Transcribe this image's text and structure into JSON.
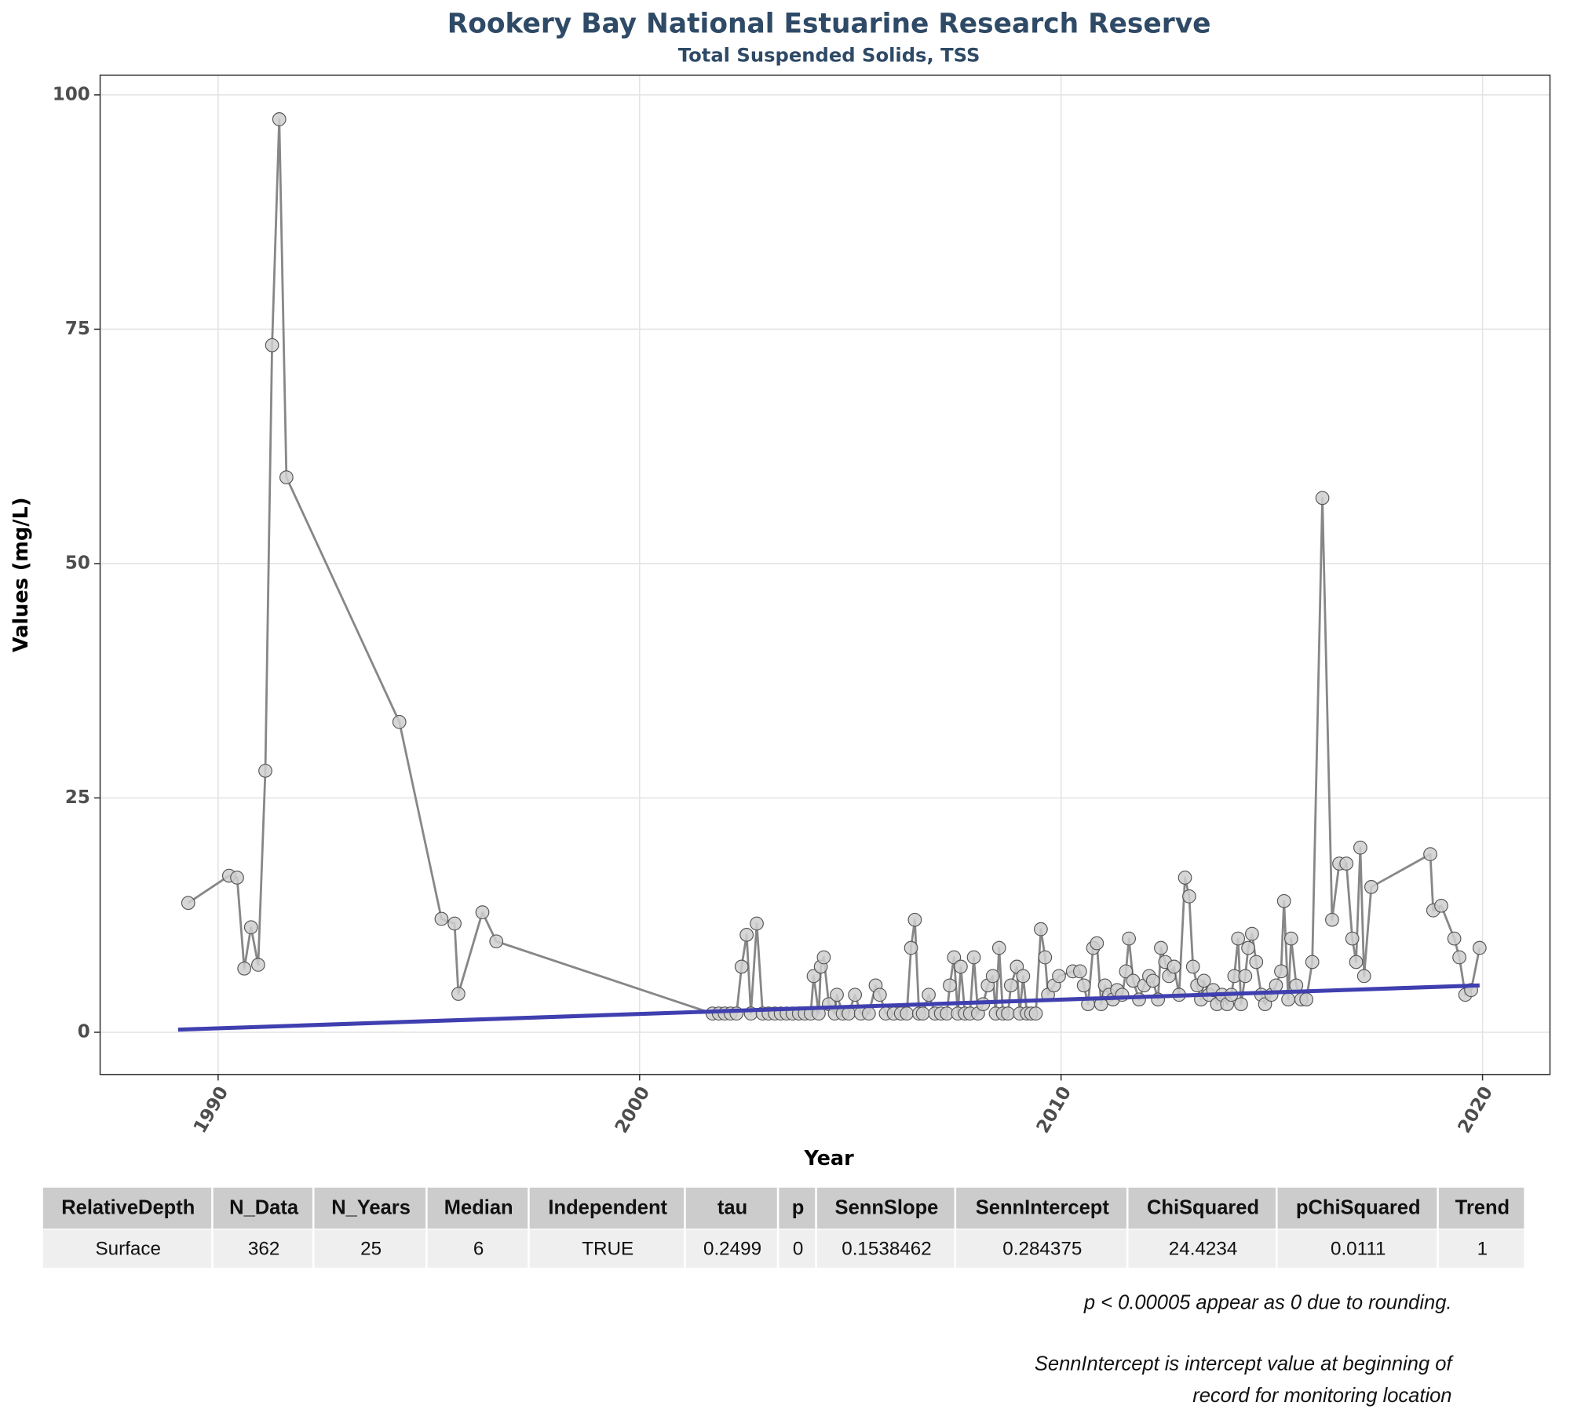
{
  "chart_data": {
    "type": "line",
    "title": "Rookery Bay National Estuarine Research Reserve",
    "subtitle": "Total Suspended Solids, TSS",
    "x_label": "Year",
    "y_label": "Values (mg/L)",
    "xlim": [
      1987.2,
      2021.6
    ],
    "ylim": [
      -4.5,
      102.1
    ],
    "xticks": [
      1990,
      2000,
      2010,
      2020
    ],
    "yticks": [
      0,
      25,
      50,
      75,
      100
    ],
    "grid": true,
    "series": [
      {
        "color": "#878787",
        "marker_fill": "#cfcfcf",
        "marker_stroke": "#555555",
        "x": [
          1989.29,
          1990.26,
          1990.45,
          1990.62,
          1990.78,
          1990.95,
          1991.12,
          1991.28,
          1991.45,
          1991.62,
          1994.3,
          1995.3,
          1995.61,
          1995.7,
          1996.27,
          1996.6,
          2001.73,
          2001.88,
          2002.02,
          2002.16,
          2002.3,
          2002.42,
          2002.54,
          2002.64,
          2002.78,
          2002.92,
          2003.06,
          2003.21,
          2003.35,
          2003.49,
          2003.63,
          2003.78,
          2003.92,
          2004.06,
          2004.13,
          2004.25,
          2004.3,
          2004.37,
          2004.49,
          2004.63,
          2004.68,
          2004.82,
          2004.96,
          2005.11,
          2005.25,
          2005.44,
          2005.6,
          2005.7,
          2005.84,
          2006.03,
          2006.2,
          2006.34,
          2006.44,
          2006.53,
          2006.63,
          2006.72,
          2006.86,
          2007.01,
          2007.15,
          2007.29,
          2007.36,
          2007.46,
          2007.55,
          2007.62,
          2007.72,
          2007.84,
          2007.93,
          2008.03,
          2008.15,
          2008.26,
          2008.38,
          2008.45,
          2008.53,
          2008.62,
          2008.74,
          2008.81,
          2008.95,
          2009.02,
          2009.1,
          2009.19,
          2009.29,
          2009.4,
          2009.52,
          2009.62,
          2009.69,
          2009.83,
          2009.95,
          2010.28,
          2010.45,
          2010.54,
          2010.64,
          2010.76,
          2010.85,
          2010.95,
          2011.04,
          2011.14,
          2011.23,
          2011.33,
          2011.45,
          2011.54,
          2011.61,
          2011.71,
          2011.85,
          2011.97,
          2012.09,
          2012.18,
          2012.3,
          2012.37,
          2012.47,
          2012.56,
          2012.68,
          2012.8,
          2012.94,
          2013.04,
          2013.13,
          2013.23,
          2013.32,
          2013.39,
          2013.51,
          2013.61,
          2013.7,
          2013.82,
          2013.94,
          2014.04,
          2014.11,
          2014.2,
          2014.27,
          2014.37,
          2014.44,
          2014.53,
          2014.63,
          2014.75,
          2014.84,
          2014.99,
          2015.1,
          2015.22,
          2015.29,
          2015.39,
          2015.46,
          2015.58,
          2015.7,
          2015.82,
          2015.96,
          2016.2,
          2016.43,
          2016.6,
          2016.77,
          2016.91,
          2017.0,
          2017.1,
          2017.19,
          2017.36,
          2018.76,
          2018.83,
          2019.02,
          2019.33,
          2019.45,
          2019.59,
          2019.73,
          2019.93
        ],
        "values": [
          13.8,
          16.7,
          16.5,
          6.8,
          11.2,
          7.2,
          27.9,
          73.3,
          97.4,
          59.2,
          33.1,
          12.1,
          11.6,
          4.1,
          12.8,
          9.7,
          2,
          2,
          2,
          2,
          2,
          7,
          10.4,
          2,
          11.6,
          2,
          2,
          2,
          2,
          2,
          2,
          2,
          2,
          2,
          6,
          2,
          7,
          8,
          3,
          2,
          4,
          2,
          2,
          4,
          2,
          2,
          5,
          4,
          2,
          2,
          2,
          2,
          9,
          12,
          2,
          2,
          4,
          2,
          2,
          2,
          5,
          8,
          2,
          7,
          2,
          2,
          8,
          2,
          3,
          5,
          6,
          2,
          9,
          2,
          2,
          5,
          7,
          2,
          6,
          2,
          2,
          2,
          11,
          8,
          4,
          5,
          6,
          6.5,
          6.5,
          5,
          3,
          9,
          9.5,
          3,
          5,
          4,
          3.5,
          4.5,
          4,
          6.5,
          10,
          5.5,
          3.5,
          5,
          6,
          5.5,
          3.5,
          9,
          7.5,
          6,
          7,
          4,
          16.5,
          14.5,
          7,
          5,
          3.5,
          5.5,
          4,
          4.5,
          3,
          4,
          3,
          4,
          6,
          10,
          3,
          6,
          9,
          10.5,
          7.5,
          4,
          3,
          4,
          5,
          6.5,
          14,
          3.5,
          10,
          5,
          3.5,
          3.5,
          7.5,
          57,
          12,
          18,
          18,
          10,
          7.5,
          19.7,
          6,
          15.5,
          19,
          13,
          13.5,
          10,
          8,
          4,
          4.5,
          9
        ]
      },
      {
        "color": "#3f3fb0",
        "x": [
          1989.05,
          2019.93
        ],
        "values": [
          0.28,
          5.0
        ]
      }
    ]
  },
  "table": {
    "columns": [
      "RelativeDepth",
      "N_Data",
      "N_Years",
      "Median",
      "Independent",
      "tau",
      "p",
      "SennSlope",
      "SennIntercept",
      "ChiSquared",
      "pChiSquared",
      "Trend"
    ],
    "rows": [
      [
        "Surface",
        362,
        25,
        6,
        "TRUE",
        0.2499,
        0,
        0.1538462,
        0.284375,
        24.4234,
        0.0111,
        1
      ]
    ]
  },
  "notes": [
    "p < 0.00005 appear as 0 due to rounding.",
    "SennIntercept is intercept value at beginning of",
    "record for monitoring location"
  ]
}
